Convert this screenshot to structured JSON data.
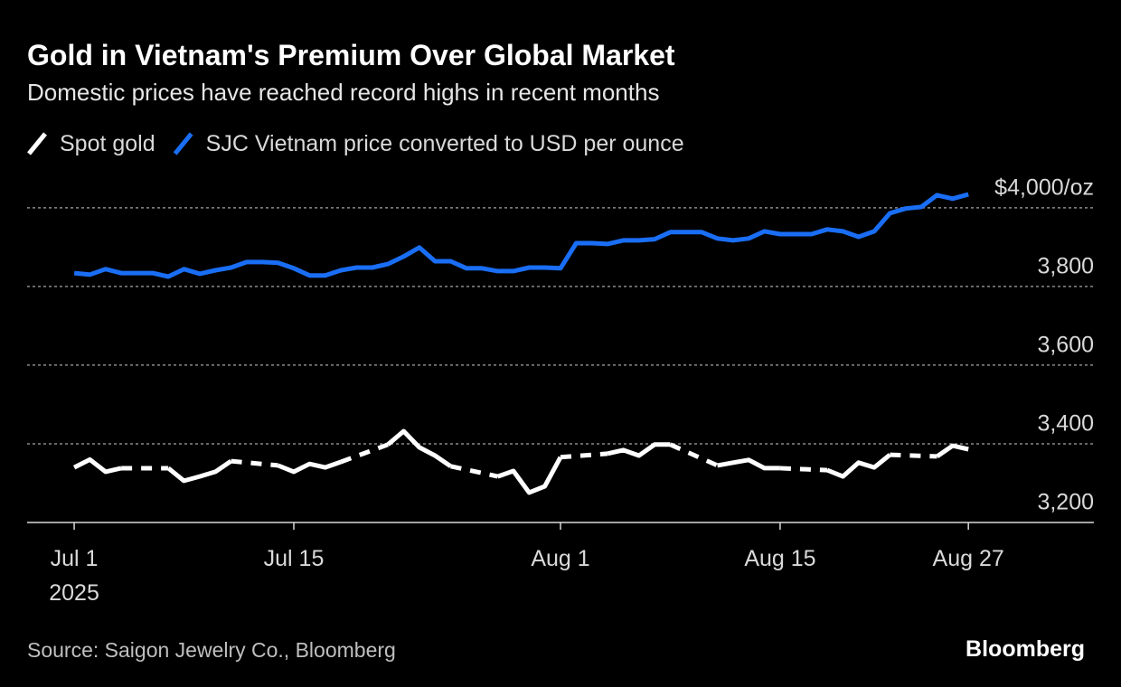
{
  "chart_data": {
    "type": "line",
    "title": "Gold in Vietnam's Premium Over Global Market",
    "subtitle": "Domestic prices have reached record highs in recent months",
    "source": "Source: Saigon Jewelry Co., Bloomberg",
    "brand": "Bloomberg",
    "x": [
      "2025-07-01",
      "2025-07-02",
      "2025-07-03",
      "2025-07-04",
      "2025-07-05",
      "2025-07-06",
      "2025-07-07",
      "2025-07-08",
      "2025-07-09",
      "2025-07-10",
      "2025-07-11",
      "2025-07-12",
      "2025-07-13",
      "2025-07-14",
      "2025-07-15",
      "2025-07-16",
      "2025-07-17",
      "2025-07-18",
      "2025-07-19",
      "2025-07-20",
      "2025-07-21",
      "2025-07-22",
      "2025-07-23",
      "2025-07-24",
      "2025-07-25",
      "2025-07-26",
      "2025-07-27",
      "2025-07-28",
      "2025-07-29",
      "2025-07-30",
      "2025-07-31",
      "2025-08-01",
      "2025-08-02",
      "2025-08-03",
      "2025-08-04",
      "2025-08-05",
      "2025-08-06",
      "2025-08-07",
      "2025-08-08",
      "2025-08-09",
      "2025-08-10",
      "2025-08-11",
      "2025-08-12",
      "2025-08-13",
      "2025-08-14",
      "2025-08-15",
      "2025-08-16",
      "2025-08-17",
      "2025-08-18",
      "2025-08-19",
      "2025-08-20",
      "2025-08-21",
      "2025-08-22",
      "2025-08-23",
      "2025-08-24",
      "2025-08-25",
      "2025-08-26",
      "2025-08-27"
    ],
    "series": [
      {
        "name": "Spot gold",
        "color": "#ffffff",
        "gap_style": "dashed",
        "values": [
          3340,
          3360,
          3329,
          3338,
          null,
          null,
          3338,
          3306,
          3317,
          3329,
          3356,
          null,
          null,
          3345,
          3329,
          3349,
          3340,
          3354,
          null,
          null,
          3398,
          3432,
          3391,
          3370,
          3343,
          null,
          null,
          3317,
          3331,
          3276,
          3292,
          3366,
          null,
          null,
          3375,
          3384,
          3370,
          3398,
          3398,
          null,
          null,
          3345,
          3352,
          3359,
          3338,
          3338,
          null,
          null,
          3333,
          3317,
          3352,
          3340,
          3372,
          null,
          null,
          3368,
          3395,
          3386
        ]
      },
      {
        "name": "SJC Vietnam price converted to USD per ounce",
        "color": "#1a6ef5",
        "values": [
          3834,
          3830,
          3844,
          3834,
          3834,
          3834,
          3825,
          3844,
          3832,
          3841,
          3848,
          3862,
          3862,
          3860,
          3846,
          3828,
          3828,
          3841,
          3848,
          3848,
          3857,
          3876,
          3899,
          3864,
          3864,
          3846,
          3846,
          3839,
          3839,
          3848,
          3848,
          3846,
          3910,
          3910,
          3908,
          3917,
          3917,
          3920,
          3938,
          3938,
          3938,
          3922,
          3917,
          3922,
          3940,
          3933,
          3933,
          3933,
          3945,
          3940,
          3926,
          3940,
          3986,
          3998,
          4002,
          4032,
          4023,
          4034
        ]
      }
    ],
    "xlim": [
      "2025-06-28",
      "2025-09-04"
    ],
    "xticks": [
      {
        "value": "2025-07-01",
        "label": "Jul 1"
      },
      {
        "value": "2025-07-15",
        "label": "Jul 15"
      },
      {
        "value": "2025-08-01",
        "label": "Aug 1"
      },
      {
        "value": "2025-08-15",
        "label": "Aug 15"
      },
      {
        "value": "2025-08-27",
        "label": "Aug 27"
      }
    ],
    "x_year_label": "2025",
    "ylim": [
      3200,
      4080
    ],
    "yticks": [
      {
        "value": 3200,
        "label": "3,200"
      },
      {
        "value": 3400,
        "label": "3,400"
      },
      {
        "value": 3600,
        "label": "3,600"
      },
      {
        "value": 3800,
        "label": "3,800"
      },
      {
        "value": 4000,
        "label": "$4,000/oz"
      }
    ],
    "grid": true,
    "legend": "top-left"
  }
}
